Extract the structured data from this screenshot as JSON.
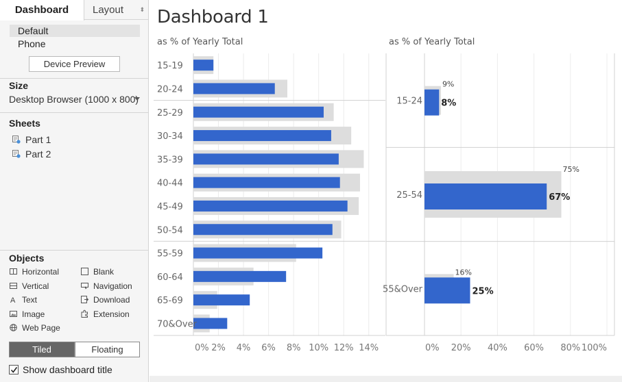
{
  "left_panel": {
    "tabs": {
      "dashboard": "Dashboard",
      "layout": "Layout"
    },
    "devices": [
      "Default",
      "Phone"
    ],
    "device_preview": "Device Preview",
    "size": {
      "title": "Size",
      "value": "Desktop Browser (1000 x 800)"
    },
    "sheets": {
      "title": "Sheets",
      "items": [
        "Part 1",
        "Part 2"
      ]
    },
    "objects": {
      "title": "Objects",
      "items": {
        "horizontal": "Horizontal",
        "blank": "Blank",
        "vertical": "Vertical",
        "navigation": "Navigation",
        "text": "Text",
        "download": "Download",
        "image": "Image",
        "extension": "Extension",
        "web_page": "Web Page"
      }
    },
    "layout_mode": {
      "tiled": "Tiled",
      "floating": "Floating",
      "selected": "Tiled"
    },
    "show_title": {
      "label": "Show dashboard title",
      "checked": true
    }
  },
  "dashboard": {
    "title": "Dashboard 1"
  },
  "colors": {
    "bar": "#3366cc",
    "reference": "#dddddd",
    "text": "#555555",
    "panel_bg": "#f5f5f5"
  },
  "chart_data": [
    {
      "type": "bar",
      "orientation": "horizontal",
      "title": "as % of Yearly Total",
      "categories": [
        "15-19",
        "20-24",
        "25-29",
        "30-34",
        "35-39",
        "40-44",
        "45-49",
        "50-54",
        "55-59",
        "60-64",
        "65-69",
        "70&Over"
      ],
      "groups": [
        2,
        6,
        4
      ],
      "series": [
        {
          "values": [
            1.6,
            6.5,
            10.4,
            11.0,
            11.6,
            11.7,
            12.3,
            11.1,
            10.3,
            7.4,
            4.5,
            2.7
          ]
        },
        {
          "values": [
            1.6,
            7.5,
            11.2,
            12.6,
            13.6,
            13.3,
            13.2,
            11.8,
            8.2,
            4.8,
            1.9,
            1.3
          ]
        }
      ],
      "xlim": [
        0,
        15
      ],
      "xticks": [
        "0%",
        "2%",
        "4%",
        "6%",
        "8%",
        "10%",
        "12%",
        "14%"
      ],
      "grid": true
    },
    {
      "type": "bar",
      "orientation": "horizontal",
      "title": "as % of Yearly Total",
      "categories": [
        "15-24",
        "25-54",
        "55&Over"
      ],
      "series": [
        {
          "values": [
            8,
            67,
            25
          ],
          "labels": [
            "8%",
            "67%",
            "25%"
          ]
        },
        {
          "values": [
            9,
            75,
            16
          ],
          "labels": [
            "9%",
            "75%",
            "16%"
          ]
        }
      ],
      "xlim": [
        0,
        100
      ],
      "xticks": [
        "0%",
        "20%",
        "40%",
        "60%",
        "80%",
        "100%"
      ],
      "grid": true
    }
  ]
}
